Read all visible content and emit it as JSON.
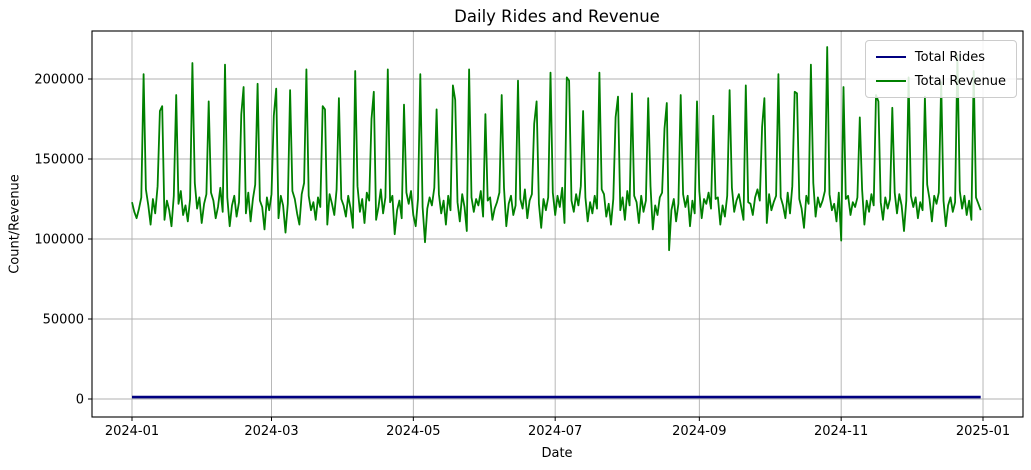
{
  "title": "Daily Rides and Revenue",
  "chart_data": {
    "type": "line",
    "title": "Daily Rides and Revenue",
    "xlabel": "Date",
    "ylabel": "Count/Revenue",
    "background": "#ffffff",
    "grid": true,
    "grid_color": "#b0b0b0",
    "legend_position": "upper right",
    "x_start_date": "2024-01-01",
    "x_end_date": "2024-12-31",
    "n_points": 366,
    "xlim_days": [
      -17.2,
      383.2
    ],
    "ylim": [
      -11250,
      230000
    ],
    "x_ticks": [
      {
        "day": 0,
        "label": "2024-01"
      },
      {
        "day": 60,
        "label": "2024-03"
      },
      {
        "day": 121,
        "label": "2024-05"
      },
      {
        "day": 182,
        "label": "2024-07"
      },
      {
        "day": 244,
        "label": "2024-09"
      },
      {
        "day": 305,
        "label": "2024-11"
      },
      {
        "day": 366,
        "label": "2025-01"
      }
    ],
    "y_ticks": [
      {
        "value": 0,
        "label": "0"
      },
      {
        "value": 50000,
        "label": "50000"
      },
      {
        "value": 100000,
        "label": "100000"
      },
      {
        "value": 150000,
        "label": "150000"
      },
      {
        "value": 200000,
        "label": "200000"
      }
    ],
    "series": [
      {
        "name": "Total Rides",
        "color": "#000080",
        "line_width": 2.6,
        "constant_value": 1200
      },
      {
        "name": "Total Revenue",
        "color": "#008000",
        "line_width": 1.8,
        "values": [
          123000,
          117000,
          113000,
          119000,
          126000,
          203000,
          131000,
          121000,
          109000,
          125000,
          116000,
          133000,
          180000,
          183000,
          112000,
          124000,
          118000,
          108000,
          127000,
          190000,
          122000,
          130000,
          115000,
          121000,
          111000,
          125000,
          210000,
          135000,
          119000,
          126000,
          110000,
          122000,
          128000,
          186000,
          129000,
          124000,
          113000,
          120000,
          132000,
          117000,
          209000,
          126000,
          108000,
          121000,
          127000,
          114000,
          123000,
          178000,
          195000,
          116000,
          129000,
          111000,
          125000,
          134000,
          197000,
          124000,
          120000,
          106000,
          126000,
          118000,
          128000,
          177000,
          194000,
          113000,
          127000,
          121000,
          104000,
          122000,
          193000,
          130000,
          125000,
          116000,
          109000,
          128000,
          135000,
          206000,
          127000,
          118000,
          123000,
          112000,
          126000,
          120000,
          183000,
          181000,
          109000,
          128000,
          122000,
          115000,
          131000,
          188000,
          125000,
          121000,
          114000,
          127000,
          119000,
          107000,
          205000,
          133000,
          117000,
          125000,
          110000,
          129000,
          124000,
          175000,
          192000,
          112000,
          120000,
          131000,
          116000,
          126000,
          206000,
          123000,
          127000,
          103000,
          118000,
          124000,
          113000,
          184000,
          129000,
          122000,
          130000,
          115000,
          108000,
          125000,
          203000,
          120000,
          98000,
          119000,
          126000,
          121000,
          132000,
          181000,
          128000,
          116000,
          124000,
          109000,
          127000,
          118000,
          196000,
          187000,
          123000,
          111000,
          128000,
          120000,
          105000,
          206000,
          126000,
          117000,
          125000,
          121000,
          130000,
          114000,
          178000,
          124000,
          126000,
          112000,
          119000,
          123000,
          129000,
          190000,
          132000,
          108000,
          122000,
          127000,
          115000,
          121000,
          199000,
          125000,
          119000,
          131000,
          113000,
          124000,
          128000,
          172000,
          186000,
          122000,
          107000,
          125000,
          118000,
          126000,
          204000,
          129000,
          115000,
          127000,
          120000,
          132000,
          110000,
          201000,
          199000,
          124000,
          117000,
          128000,
          121000,
          133000,
          180000,
          126000,
          111000,
          123000,
          116000,
          127000,
          119000,
          204000,
          131000,
          128000,
          114000,
          122000,
          109000,
          125000,
          176000,
          189000,
          118000,
          126000,
          112000,
          130000,
          121000,
          191000,
          127000,
          123000,
          110000,
          127000,
          117000,
          124000,
          188000,
          133000,
          106000,
          121000,
          115000,
          126000,
          129000,
          169000,
          185000,
          93000,
          118000,
          125000,
          111000,
          122000,
          190000,
          128000,
          120000,
          127000,
          108000,
          124000,
          116000,
          186000,
          130000,
          113000,
          125000,
          122000,
          129000,
          119000,
          177000,
          125000,
          126000,
          109000,
          121000,
          114000,
          127000,
          193000,
          132000,
          117000,
          124000,
          128000,
          120000,
          112000,
          196000,
          123000,
          122000,
          115000,
          126000,
          131000,
          124000,
          170000,
          188000,
          110000,
          128000,
          118000,
          123000,
          127000,
          203000,
          126000,
          121000,
          113000,
          129000,
          116000,
          133000,
          192000,
          191000,
          125000,
          119000,
          107000,
          127000,
          122000,
          209000,
          135000,
          114000,
          126000,
          120000,
          124000,
          130000,
          220000,
          128000,
          118000,
          122000,
          111000,
          129000,
          99000,
          195000,
          125000,
          127000,
          115000,
          123000,
          120000,
          126000,
          176000,
          131000,
          109000,
          124000,
          117000,
          128000,
          121000,
          190000,
          186000,
          123000,
          112000,
          126000,
          119000,
          125000,
          182000,
          129000,
          116000,
          128000,
          121000,
          105000,
          124000,
          201000,
          127000,
          120000,
          126000,
          113000,
          123000,
          118000,
          189000,
          134000,
          125000,
          111000,
          127000,
          122000,
          129000,
          198000,
          124000,
          108000,
          121000,
          126000,
          117000,
          123000,
          215000,
          130000,
          119000,
          127000,
          115000,
          124000,
          112000,
          205000,
          126000,
          122000,
          118000
        ]
      }
    ]
  }
}
